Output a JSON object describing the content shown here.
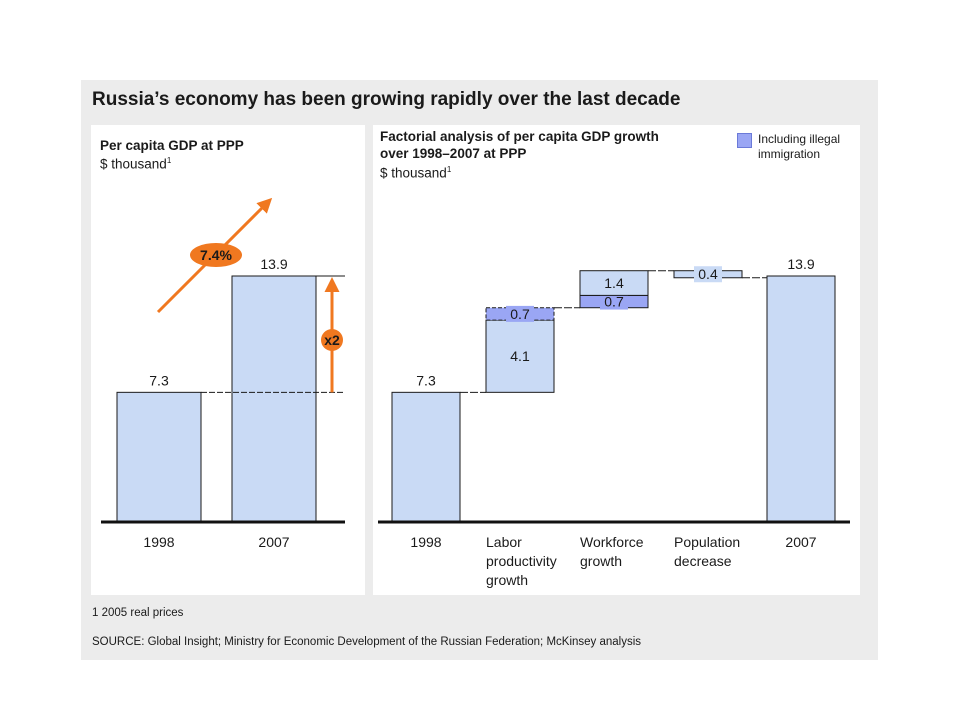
{
  "title": "Russia’s economy has been growing rapidly over the last decade",
  "colors": {
    "bar_fill": "#c9daf5",
    "illegal_fill": "#9aa6f4",
    "accent": "#f07820",
    "axis": "#111111",
    "background": "#ececec"
  },
  "left_panel": {
    "title": "Per capita GDP at PPP",
    "unit": "$ thousand",
    "unit_note": "1"
  },
  "right_panel": {
    "title_line1": "Factorial analysis of per capita GDP growth",
    "title_line2": "over 1998–2007 at PPP",
    "unit": "$ thousand",
    "unit_note": "1"
  },
  "legend": {
    "label": "Including illegal immigration"
  },
  "footnote": "1 2005 real prices",
  "source": "SOURCE: Global Insight; Ministry for Economic Development of the Russian Federation; McKinsey analysis",
  "chart_data": [
    {
      "type": "bar",
      "title": "Per capita GDP at PPP",
      "ylabel": "$ thousand",
      "categories": [
        "1998",
        "2007"
      ],
      "values": [
        7.3,
        13.9
      ],
      "annotations": [
        {
          "text": "7.4%",
          "meaning": "annual growth rate (CAGR)"
        },
        {
          "text": "x2",
          "meaning": "growth multiple 1998 to 2007"
        }
      ],
      "ylim": [
        0,
        13.9
      ],
      "grid": false
    },
    {
      "type": "waterfall",
      "title": "Factorial analysis of per capita GDP growth over 1998–2007 at PPP",
      "ylabel": "$ thousand",
      "categories": [
        "1998",
        "Labor productivity growth",
        "Workforce growth",
        "Population decrease",
        "2007"
      ],
      "category_lines": [
        [
          "1998"
        ],
        [
          "Labor",
          "productivity",
          "growth"
        ],
        [
          "Workforce",
          "growth"
        ],
        [
          "Population",
          "decrease"
        ],
        [
          "2007"
        ]
      ],
      "steps": [
        {
          "category": "1998",
          "kind": "total",
          "value": 7.3,
          "label": "7.3"
        },
        {
          "category": "Labor productivity growth",
          "kind": "delta",
          "segments": [
            {
              "value": 4.1,
              "label": "4.1",
              "series": "base"
            },
            {
              "value": 0.7,
              "label": "0.7",
              "series": "Including illegal immigration"
            }
          ]
        },
        {
          "category": "Workforce growth",
          "kind": "delta",
          "segments": [
            {
              "value": 0.7,
              "label": "0.7",
              "series": "Including illegal immigration"
            },
            {
              "value": 1.4,
              "label": "1.4",
              "series": "base"
            }
          ]
        },
        {
          "category": "Population decrease",
          "kind": "delta",
          "segments": [
            {
              "value": -0.4,
              "label": "-0.4",
              "display": "0.4",
              "series": "base"
            }
          ]
        },
        {
          "category": "2007",
          "kind": "total",
          "value": 13.9,
          "label": "13.9"
        }
      ],
      "legend": [
        "Including illegal immigration"
      ],
      "legend_position": "top-right",
      "ylim": [
        0,
        14.5
      ],
      "grid": false
    }
  ]
}
